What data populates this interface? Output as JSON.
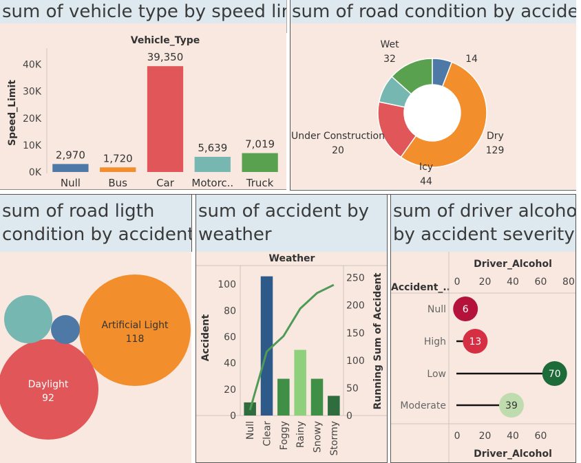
{
  "colors": {
    "panel_bg": "#f9e8e0",
    "title_bg": "#dde9ee",
    "blue": "#4e79a7",
    "orange": "#f28e2b",
    "red": "#e15759",
    "teal": "#76b7b2",
    "green": "#59a14f",
    "dark_green": "#2f6d3e"
  },
  "panels": {
    "vehicle": {
      "title": "sum of vehicle type by speed limit"
    },
    "road": {
      "title": "sum of road condition by accident"
    },
    "light": {
      "title_line1": "sum of road ligth",
      "title_line2": "condition by accident"
    },
    "weather": {
      "title_line1": "sum of accident by",
      "title_line2": "weather"
    },
    "alcohol": {
      "title_line1": "sum of driver alcohol",
      "title_line2": "by accident severity"
    }
  },
  "chart_data": [
    {
      "id": "vehicle",
      "type": "bar",
      "header": "Vehicle_Type",
      "ylabel": "Speed_Limit",
      "categories": [
        "Null",
        "Bus",
        "Car",
        "Motorc..",
        "Truck"
      ],
      "values": [
        2970,
        1720,
        39350,
        5639,
        7019
      ],
      "value_labels": [
        "2,970",
        "1,720",
        "39,350",
        "5,639",
        "7,019"
      ],
      "ylim": [
        0,
        44000
      ],
      "yticks": [
        0,
        10000,
        20000,
        30000,
        40000
      ],
      "ytick_labels": [
        "0K",
        "10K",
        "20K",
        "30K",
        "40K"
      ],
      "colors": [
        "#4e79a7",
        "#f28e2b",
        "#e15759",
        "#76b7b2",
        "#59a14f"
      ]
    },
    {
      "id": "road",
      "type": "pie",
      "donut": true,
      "slices": [
        {
          "label": "",
          "value": 14,
          "color": "#4e79a7"
        },
        {
          "label": "Dry",
          "value": 129,
          "color": "#f28e2b"
        },
        {
          "label": "Icy",
          "value": 44,
          "color": "#e15759"
        },
        {
          "label": "Under Construction",
          "value": 20,
          "color": "#76b7b2"
        },
        {
          "label": "Wet",
          "value": 32,
          "color": "#59a14f"
        }
      ]
    },
    {
      "id": "light",
      "type": "bubble",
      "bubbles": [
        {
          "label": "Artificial Light",
          "value": 118,
          "color": "#f28e2b"
        },
        {
          "label": "Daylight",
          "value": 92,
          "color": "#e15759"
        },
        {
          "label": "",
          "value": null,
          "color": "#76b7b2"
        },
        {
          "label": "",
          "value": null,
          "color": "#4e79a7"
        }
      ]
    },
    {
      "id": "weather",
      "type": "bar",
      "header": "Weather",
      "ylabel": "Accident",
      "y2label": "Running Sum of Accident",
      "categories": [
        "Null",
        "Clear",
        "Foggy",
        "Rainy",
        "Snowy",
        "Stormy"
      ],
      "values": [
        10,
        106,
        28,
        50,
        28,
        15
      ],
      "running_sum": [
        10,
        116,
        144,
        194,
        222,
        237
      ],
      "colors": [
        "#2f6d3e",
        "#2e5a8a",
        "#3f8f46",
        "#8fd07c",
        "#3f8f46",
        "#2f6d3e"
      ],
      "line_color": "#4f9a56",
      "ylim": [
        0,
        110
      ],
      "yticks": [
        0,
        20,
        40,
        60,
        80,
        100
      ],
      "y2lim": [
        0,
        262
      ],
      "y2ticks": [
        0,
        50,
        100,
        150,
        200,
        250
      ]
    },
    {
      "id": "alcohol",
      "type": "scatter",
      "header": "Driver_Alcohol",
      "xlabel": "Driver_Alcohol",
      "row_header": "Accident_..",
      "categories": [
        "Null",
        "High",
        "Low",
        "Moderate"
      ],
      "values": [
        6,
        13,
        70,
        39
      ],
      "colors": [
        "#b5123b",
        "#d42f43",
        "#1e6b3a",
        "#bfdcae"
      ],
      "label_colors": [
        "#ffffff",
        "#ffffff",
        "#ffffff",
        "#333333"
      ],
      "xlim": [
        -2,
        82
      ],
      "top_ticks": [
        0,
        20,
        40,
        60,
        80
      ],
      "bottom_ticks": [
        0,
        20,
        40,
        60
      ]
    }
  ]
}
